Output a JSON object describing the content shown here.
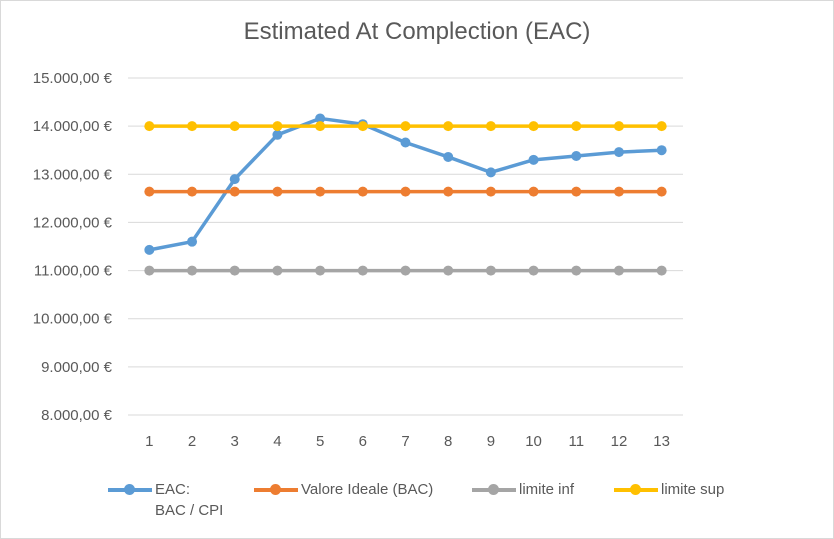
{
  "chart_data": {
    "type": "line",
    "title": "Estimated At Complection (EAC)",
    "categories": [
      "1",
      "2",
      "3",
      "4",
      "5",
      "6",
      "7",
      "8",
      "9",
      "10",
      "11",
      "12",
      "13"
    ],
    "ylim": [
      8000,
      15000
    ],
    "ytick_step": 1000,
    "ytick_labels": [
      "8.000,00 €",
      "9.000,00 €",
      "10.000,00 €",
      "11.000,00 €",
      "12.000,00 €",
      "13.000,00 €",
      "14.000,00 €",
      "15.000,00 €"
    ],
    "grid": true,
    "legend_position": "bottom",
    "series": [
      {
        "name_lines": [
          "EAC:",
          "BAC / CPI"
        ],
        "color": "#5b9bd5",
        "values": [
          11430,
          11600,
          12900,
          13820,
          14160,
          14040,
          13660,
          13360,
          13040,
          13300,
          13380,
          13460,
          13500
        ]
      },
      {
        "name_lines": [
          "Valore Ideale (BAC)"
        ],
        "color": "#ed7d31",
        "values": [
          12640,
          12640,
          12640,
          12640,
          12640,
          12640,
          12640,
          12640,
          12640,
          12640,
          12640,
          12640,
          12640
        ]
      },
      {
        "name_lines": [
          "limite inf"
        ],
        "color": "#a5a5a5",
        "values": [
          11000,
          11000,
          11000,
          11000,
          11000,
          11000,
          11000,
          11000,
          11000,
          11000,
          11000,
          11000,
          11000
        ]
      },
      {
        "name_lines": [
          "limite sup"
        ],
        "color": "#ffc000",
        "values": [
          14000,
          14000,
          14000,
          14000,
          14000,
          14000,
          14000,
          14000,
          14000,
          14000,
          14000,
          14000,
          14000
        ]
      }
    ]
  }
}
